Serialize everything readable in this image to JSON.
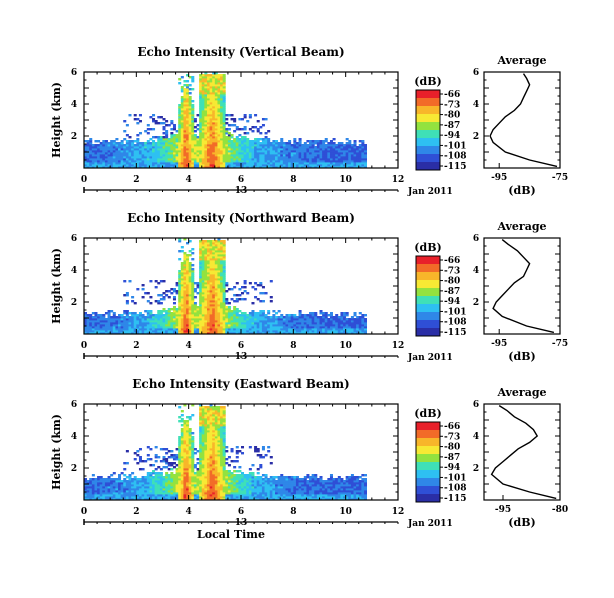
{
  "chart_data": [
    {
      "type": "heatmap",
      "title": "Echo Intensity (Vertical Beam)",
      "ylabel": "Height (km)",
      "xlim": [
        0,
        12
      ],
      "ylim": [
        0,
        6
      ],
      "x_ticks": [
        "0",
        "2",
        "4",
        "6",
        "8",
        "10",
        "12"
      ],
      "y_ticks": [
        "2",
        "4",
        "6"
      ],
      "date_axis": {
        "day": "13",
        "month_year": "Jan 2011"
      },
      "colorbar": {
        "unit": "(dB)",
        "levels": [
          "-66",
          "-73",
          "-80",
          "-87",
          "-94",
          "-101",
          "-108",
          "-115"
        ],
        "colors": [
          "#e8202a",
          "#f26b28",
          "#f8b62a",
          "#f7e934",
          "#93e23f",
          "#3fe0b7",
          "#2ec0f2",
          "#2f87e8",
          "#2f4fd6",
          "#2a2ea6"
        ]
      },
      "coverage": {
        "x_start": 0.0,
        "x_end": 10.8,
        "low_layer_top_km": 1.4
      },
      "convective_bands": [
        {
          "x_start": 3.6,
          "x_end": 4.2,
          "peak_db": -66
        },
        {
          "x_start": 4.4,
          "x_end": 5.4,
          "peak_db": -66
        }
      ],
      "profile": {
        "title": "Average",
        "xlabel": "(dB)",
        "x_ticks": [
          "-95",
          "-75"
        ],
        "y_ticks": [
          "2",
          "4",
          "6"
        ],
        "xlim": [
          -100,
          -75
        ],
        "ylim": [
          0,
          6
        ],
        "points": [
          [
            -76,
            0.1
          ],
          [
            -85,
            0.5
          ],
          [
            -93,
            1.0
          ],
          [
            -97,
            1.6
          ],
          [
            -98,
            2.0
          ],
          [
            -97,
            2.4
          ],
          [
            -95,
            2.8
          ],
          [
            -93,
            3.2
          ],
          [
            -90,
            3.6
          ],
          [
            -88,
            4.0
          ],
          [
            -87,
            4.4
          ],
          [
            -86,
            4.8
          ],
          [
            -85,
            5.2
          ],
          [
            -86,
            5.6
          ],
          [
            -87,
            5.9
          ]
        ]
      }
    },
    {
      "type": "heatmap",
      "title": "Echo Intensity (Northward Beam)",
      "ylabel": "Height (km)",
      "xlim": [
        0,
        12
      ],
      "ylim": [
        0,
        6
      ],
      "x_ticks": [
        "0",
        "2",
        "4",
        "6",
        "8",
        "10",
        "12"
      ],
      "y_ticks": [
        "2",
        "4",
        "6"
      ],
      "date_axis": {
        "day": "13",
        "month_year": "Jan 2011"
      },
      "colorbar": {
        "unit": "(dB)",
        "levels": [
          "-66",
          "-73",
          "-80",
          "-87",
          "-94",
          "-101",
          "-108",
          "-115"
        ],
        "colors": [
          "#e8202a",
          "#f26b28",
          "#f8b62a",
          "#f7e934",
          "#93e23f",
          "#3fe0b7",
          "#2ec0f2",
          "#2f87e8",
          "#2f4fd6",
          "#2a2ea6"
        ]
      },
      "coverage": {
        "x_start": 0.0,
        "x_end": 10.8,
        "low_layer_top_km": 1.0
      },
      "convective_bands": [
        {
          "x_start": 3.6,
          "x_end": 4.2,
          "peak_db": -66
        },
        {
          "x_start": 4.4,
          "x_end": 5.4,
          "peak_db": -66
        }
      ],
      "profile": {
        "title": "Average",
        "xlabel": "(dB)",
        "x_ticks": [
          "-95",
          "-75"
        ],
        "y_ticks": [
          "2",
          "4",
          "6"
        ],
        "xlim": [
          -100,
          -75
        ],
        "ylim": [
          0,
          6
        ],
        "points": [
          [
            -77,
            0.1
          ],
          [
            -86,
            0.5
          ],
          [
            -94,
            1.1
          ],
          [
            -97,
            1.6
          ],
          [
            -96,
            2.0
          ],
          [
            -94,
            2.4
          ],
          [
            -92,
            2.8
          ],
          [
            -90,
            3.2
          ],
          [
            -87,
            3.6
          ],
          [
            -86,
            4.0
          ],
          [
            -85,
            4.4
          ],
          [
            -87,
            4.8
          ],
          [
            -89,
            5.2
          ],
          [
            -92,
            5.6
          ],
          [
            -94,
            5.9
          ]
        ]
      }
    },
    {
      "type": "heatmap",
      "title": "Echo Intensity (Eastward Beam)",
      "ylabel": "Height (km)",
      "xlabel": "Local Time",
      "xlim": [
        0,
        12
      ],
      "ylim": [
        0,
        6
      ],
      "x_ticks": [
        "0",
        "2",
        "4",
        "6",
        "8",
        "10",
        "12"
      ],
      "y_ticks": [
        "2",
        "4",
        "6"
      ],
      "date_axis": {
        "day": "13",
        "month_year": "Jan 2011"
      },
      "colorbar": {
        "unit": "(dB)",
        "levels": [
          "-66",
          "-73",
          "-80",
          "-87",
          "-94",
          "-101",
          "-108",
          "-115"
        ],
        "colors": [
          "#e8202a",
          "#f26b28",
          "#f8b62a",
          "#f7e934",
          "#93e23f",
          "#3fe0b7",
          "#2ec0f2",
          "#2f87e8",
          "#2f4fd6",
          "#2a2ea6"
        ]
      },
      "coverage": {
        "x_start": 0.0,
        "x_end": 10.8,
        "low_layer_top_km": 1.2
      },
      "convective_bands": [
        {
          "x_start": 3.6,
          "x_end": 4.2,
          "peak_db": -66
        },
        {
          "x_start": 4.4,
          "x_end": 5.4,
          "peak_db": -66
        }
      ],
      "profile": {
        "title": "Average",
        "xlabel": "(dB)",
        "x_ticks": [
          "-95",
          "-80"
        ],
        "y_ticks": [
          "2",
          "4",
          "6"
        ],
        "xlim": [
          -100,
          -80
        ],
        "ylim": [
          0,
          6
        ],
        "points": [
          [
            -81,
            0.1
          ],
          [
            -88,
            0.5
          ],
          [
            -95,
            1.0
          ],
          [
            -98,
            1.6
          ],
          [
            -97,
            2.0
          ],
          [
            -95,
            2.4
          ],
          [
            -93,
            2.8
          ],
          [
            -91,
            3.2
          ],
          [
            -88,
            3.6
          ],
          [
            -86,
            4.0
          ],
          [
            -87,
            4.4
          ],
          [
            -89,
            4.8
          ],
          [
            -92,
            5.2
          ],
          [
            -94,
            5.6
          ],
          [
            -96,
            5.9
          ]
        ]
      }
    }
  ]
}
